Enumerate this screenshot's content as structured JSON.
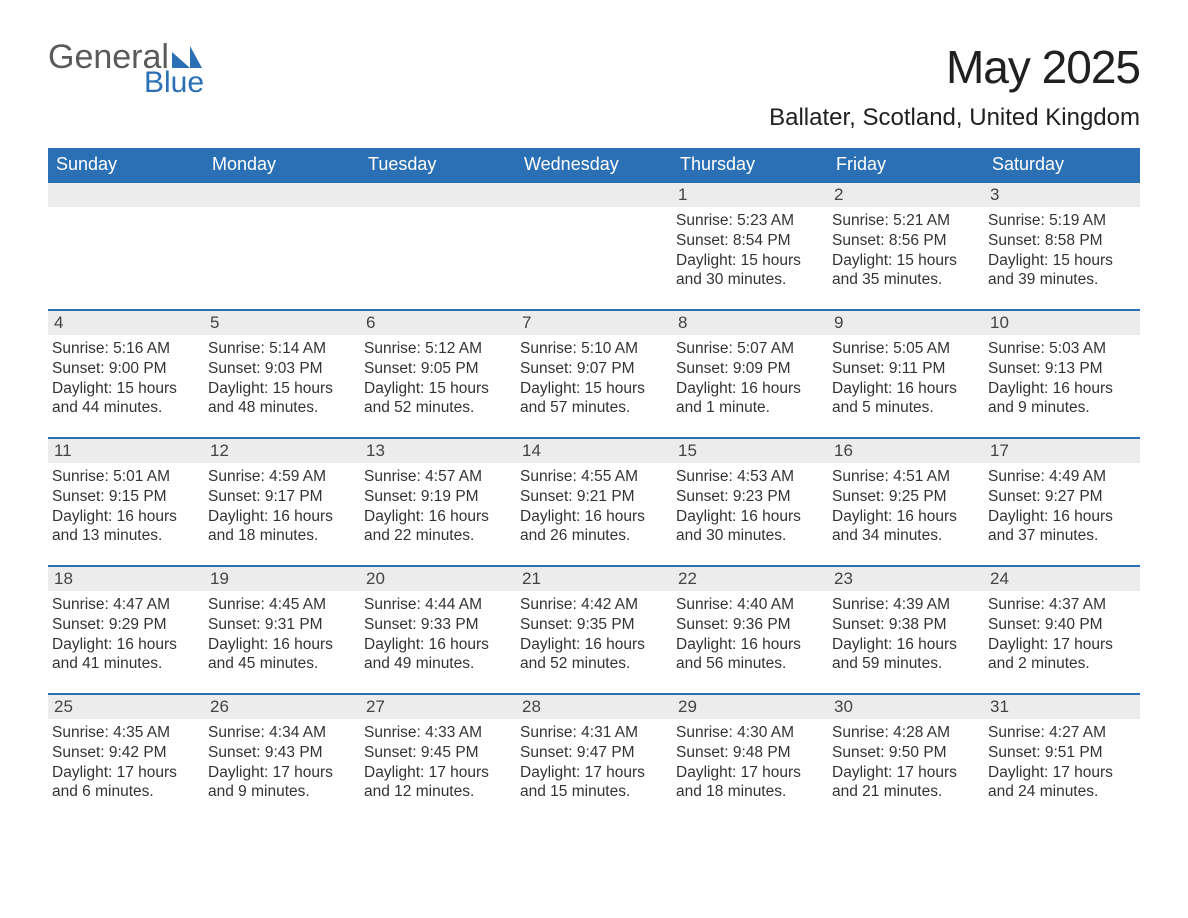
{
  "logo": {
    "word1": "General",
    "word2": "Blue"
  },
  "title": "May 2025",
  "location": "Ballater, Scotland, United Kingdom",
  "accent_color": "#2b6fb5",
  "header_bg": "#2b6fb5",
  "daybar_bg": "#ececec",
  "text_color": "#333333",
  "weekdays": [
    "Sunday",
    "Monday",
    "Tuesday",
    "Wednesday",
    "Thursday",
    "Friday",
    "Saturday"
  ],
  "weeks": [
    [
      null,
      null,
      null,
      null,
      {
        "n": "1",
        "sunrise": "5:23 AM",
        "sunset": "8:54 PM",
        "daylight": "15 hours and 30 minutes."
      },
      {
        "n": "2",
        "sunrise": "5:21 AM",
        "sunset": "8:56 PM",
        "daylight": "15 hours and 35 minutes."
      },
      {
        "n": "3",
        "sunrise": "5:19 AM",
        "sunset": "8:58 PM",
        "daylight": "15 hours and 39 minutes."
      }
    ],
    [
      {
        "n": "4",
        "sunrise": "5:16 AM",
        "sunset": "9:00 PM",
        "daylight": "15 hours and 44 minutes."
      },
      {
        "n": "5",
        "sunrise": "5:14 AM",
        "sunset": "9:03 PM",
        "daylight": "15 hours and 48 minutes."
      },
      {
        "n": "6",
        "sunrise": "5:12 AM",
        "sunset": "9:05 PM",
        "daylight": "15 hours and 52 minutes."
      },
      {
        "n": "7",
        "sunrise": "5:10 AM",
        "sunset": "9:07 PM",
        "daylight": "15 hours and 57 minutes."
      },
      {
        "n": "8",
        "sunrise": "5:07 AM",
        "sunset": "9:09 PM",
        "daylight": "16 hours and 1 minute."
      },
      {
        "n": "9",
        "sunrise": "5:05 AM",
        "sunset": "9:11 PM",
        "daylight": "16 hours and 5 minutes."
      },
      {
        "n": "10",
        "sunrise": "5:03 AM",
        "sunset": "9:13 PM",
        "daylight": "16 hours and 9 minutes."
      }
    ],
    [
      {
        "n": "11",
        "sunrise": "5:01 AM",
        "sunset": "9:15 PM",
        "daylight": "16 hours and 13 minutes."
      },
      {
        "n": "12",
        "sunrise": "4:59 AM",
        "sunset": "9:17 PM",
        "daylight": "16 hours and 18 minutes."
      },
      {
        "n": "13",
        "sunrise": "4:57 AM",
        "sunset": "9:19 PM",
        "daylight": "16 hours and 22 minutes."
      },
      {
        "n": "14",
        "sunrise": "4:55 AM",
        "sunset": "9:21 PM",
        "daylight": "16 hours and 26 minutes."
      },
      {
        "n": "15",
        "sunrise": "4:53 AM",
        "sunset": "9:23 PM",
        "daylight": "16 hours and 30 minutes."
      },
      {
        "n": "16",
        "sunrise": "4:51 AM",
        "sunset": "9:25 PM",
        "daylight": "16 hours and 34 minutes."
      },
      {
        "n": "17",
        "sunrise": "4:49 AM",
        "sunset": "9:27 PM",
        "daylight": "16 hours and 37 minutes."
      }
    ],
    [
      {
        "n": "18",
        "sunrise": "4:47 AM",
        "sunset": "9:29 PM",
        "daylight": "16 hours and 41 minutes."
      },
      {
        "n": "19",
        "sunrise": "4:45 AM",
        "sunset": "9:31 PM",
        "daylight": "16 hours and 45 minutes."
      },
      {
        "n": "20",
        "sunrise": "4:44 AM",
        "sunset": "9:33 PM",
        "daylight": "16 hours and 49 minutes."
      },
      {
        "n": "21",
        "sunrise": "4:42 AM",
        "sunset": "9:35 PM",
        "daylight": "16 hours and 52 minutes."
      },
      {
        "n": "22",
        "sunrise": "4:40 AM",
        "sunset": "9:36 PM",
        "daylight": "16 hours and 56 minutes."
      },
      {
        "n": "23",
        "sunrise": "4:39 AM",
        "sunset": "9:38 PM",
        "daylight": "16 hours and 59 minutes."
      },
      {
        "n": "24",
        "sunrise": "4:37 AM",
        "sunset": "9:40 PM",
        "daylight": "17 hours and 2 minutes."
      }
    ],
    [
      {
        "n": "25",
        "sunrise": "4:35 AM",
        "sunset": "9:42 PM",
        "daylight": "17 hours and 6 minutes."
      },
      {
        "n": "26",
        "sunrise": "4:34 AM",
        "sunset": "9:43 PM",
        "daylight": "17 hours and 9 minutes."
      },
      {
        "n": "27",
        "sunrise": "4:33 AM",
        "sunset": "9:45 PM",
        "daylight": "17 hours and 12 minutes."
      },
      {
        "n": "28",
        "sunrise": "4:31 AM",
        "sunset": "9:47 PM",
        "daylight": "17 hours and 15 minutes."
      },
      {
        "n": "29",
        "sunrise": "4:30 AM",
        "sunset": "9:48 PM",
        "daylight": "17 hours and 18 minutes."
      },
      {
        "n": "30",
        "sunrise": "4:28 AM",
        "sunset": "9:50 PM",
        "daylight": "17 hours and 21 minutes."
      },
      {
        "n": "31",
        "sunrise": "4:27 AM",
        "sunset": "9:51 PM",
        "daylight": "17 hours and 24 minutes."
      }
    ]
  ],
  "labels": {
    "sunrise": "Sunrise: ",
    "sunset": "Sunset: ",
    "daylight": "Daylight: "
  }
}
